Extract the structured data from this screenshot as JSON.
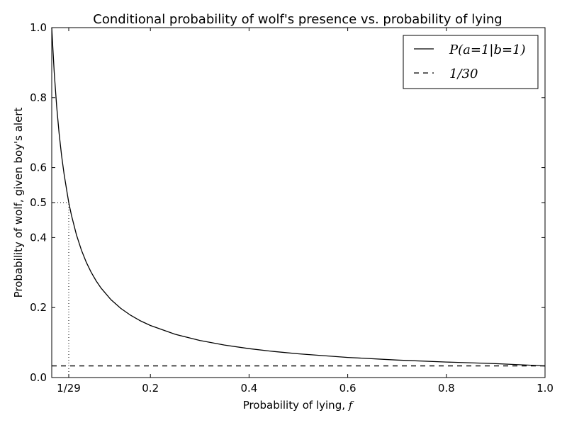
{
  "chart_data": {
    "type": "line",
    "title": "Conditional probability of wolf's presence vs. probability of lying",
    "xlabel_prefix": "Probability of lying, ",
    "xlabel_symbol": "f",
    "ylabel": "Probability of wolf, given boy's alert",
    "xlim": [
      0.0,
      1.0
    ],
    "ylim": [
      0.0,
      1.0
    ],
    "xticks": [
      {
        "value": 0.034483,
        "label": "1/29"
      },
      {
        "value": 0.2,
        "label": "0.2"
      },
      {
        "value": 0.4,
        "label": "0.4"
      },
      {
        "value": 0.6,
        "label": "0.6"
      },
      {
        "value": 0.8,
        "label": "0.8"
      },
      {
        "value": 1.0,
        "label": "1.0"
      }
    ],
    "yticks": [
      {
        "value": 0.0,
        "label": "0.0"
      },
      {
        "value": 0.2,
        "label": "0.2"
      },
      {
        "value": 0.4,
        "label": "0.4"
      },
      {
        "value": 0.5,
        "label": "0.5"
      },
      {
        "value": 0.6,
        "label": "0.6"
      },
      {
        "value": 0.8,
        "label": "0.8"
      },
      {
        "value": 1.0,
        "label": "1.0"
      }
    ],
    "series": [
      {
        "name": "P(a=1|b=1)",
        "style": "solid",
        "color": "#000000",
        "x": [
          0.0,
          0.005,
          0.01,
          0.015,
          0.02,
          0.025,
          0.03,
          0.0345,
          0.04,
          0.05,
          0.06,
          0.07,
          0.08,
          0.09,
          0.1,
          0.12,
          0.14,
          0.16,
          0.18,
          0.2,
          0.25,
          0.3,
          0.35,
          0.4,
          0.45,
          0.5,
          0.6,
          0.7,
          0.8,
          0.9,
          1.0
        ],
        "y": [
          1.0,
          0.8727,
          0.7746,
          0.6969,
          0.6338,
          0.5818,
          0.5382,
          0.5,
          0.4636,
          0.4083,
          0.3647,
          0.3296,
          0.3006,
          0.2763,
          0.2557,
          0.2227,
          0.1976,
          0.1779,
          0.1619,
          0.1488,
          0.1237,
          0.106,
          0.0928,
          0.0826,
          0.0745,
          0.0678,
          0.0575,
          0.05,
          0.0443,
          0.0398,
          0.0333
        ]
      },
      {
        "name": "1/30",
        "style": "dashed",
        "color": "#000000",
        "x": [
          0.0,
          1.0
        ],
        "y": [
          0.0333,
          0.0333
        ]
      }
    ],
    "guides": [
      {
        "type": "horizontal",
        "y": 0.5,
        "x_from": 0.0,
        "x_to": 0.034483,
        "style": "dotted"
      },
      {
        "type": "vertical",
        "x": 0.034483,
        "y_from": 0.0,
        "y_to": 0.5,
        "style": "dotted"
      }
    ],
    "legend": {
      "position": "top-right",
      "entries": [
        {
          "label_math": "P(a=1|b=1)",
          "style": "solid"
        },
        {
          "label_math": "1/30",
          "style": "dashed"
        }
      ]
    },
    "grid": false
  }
}
